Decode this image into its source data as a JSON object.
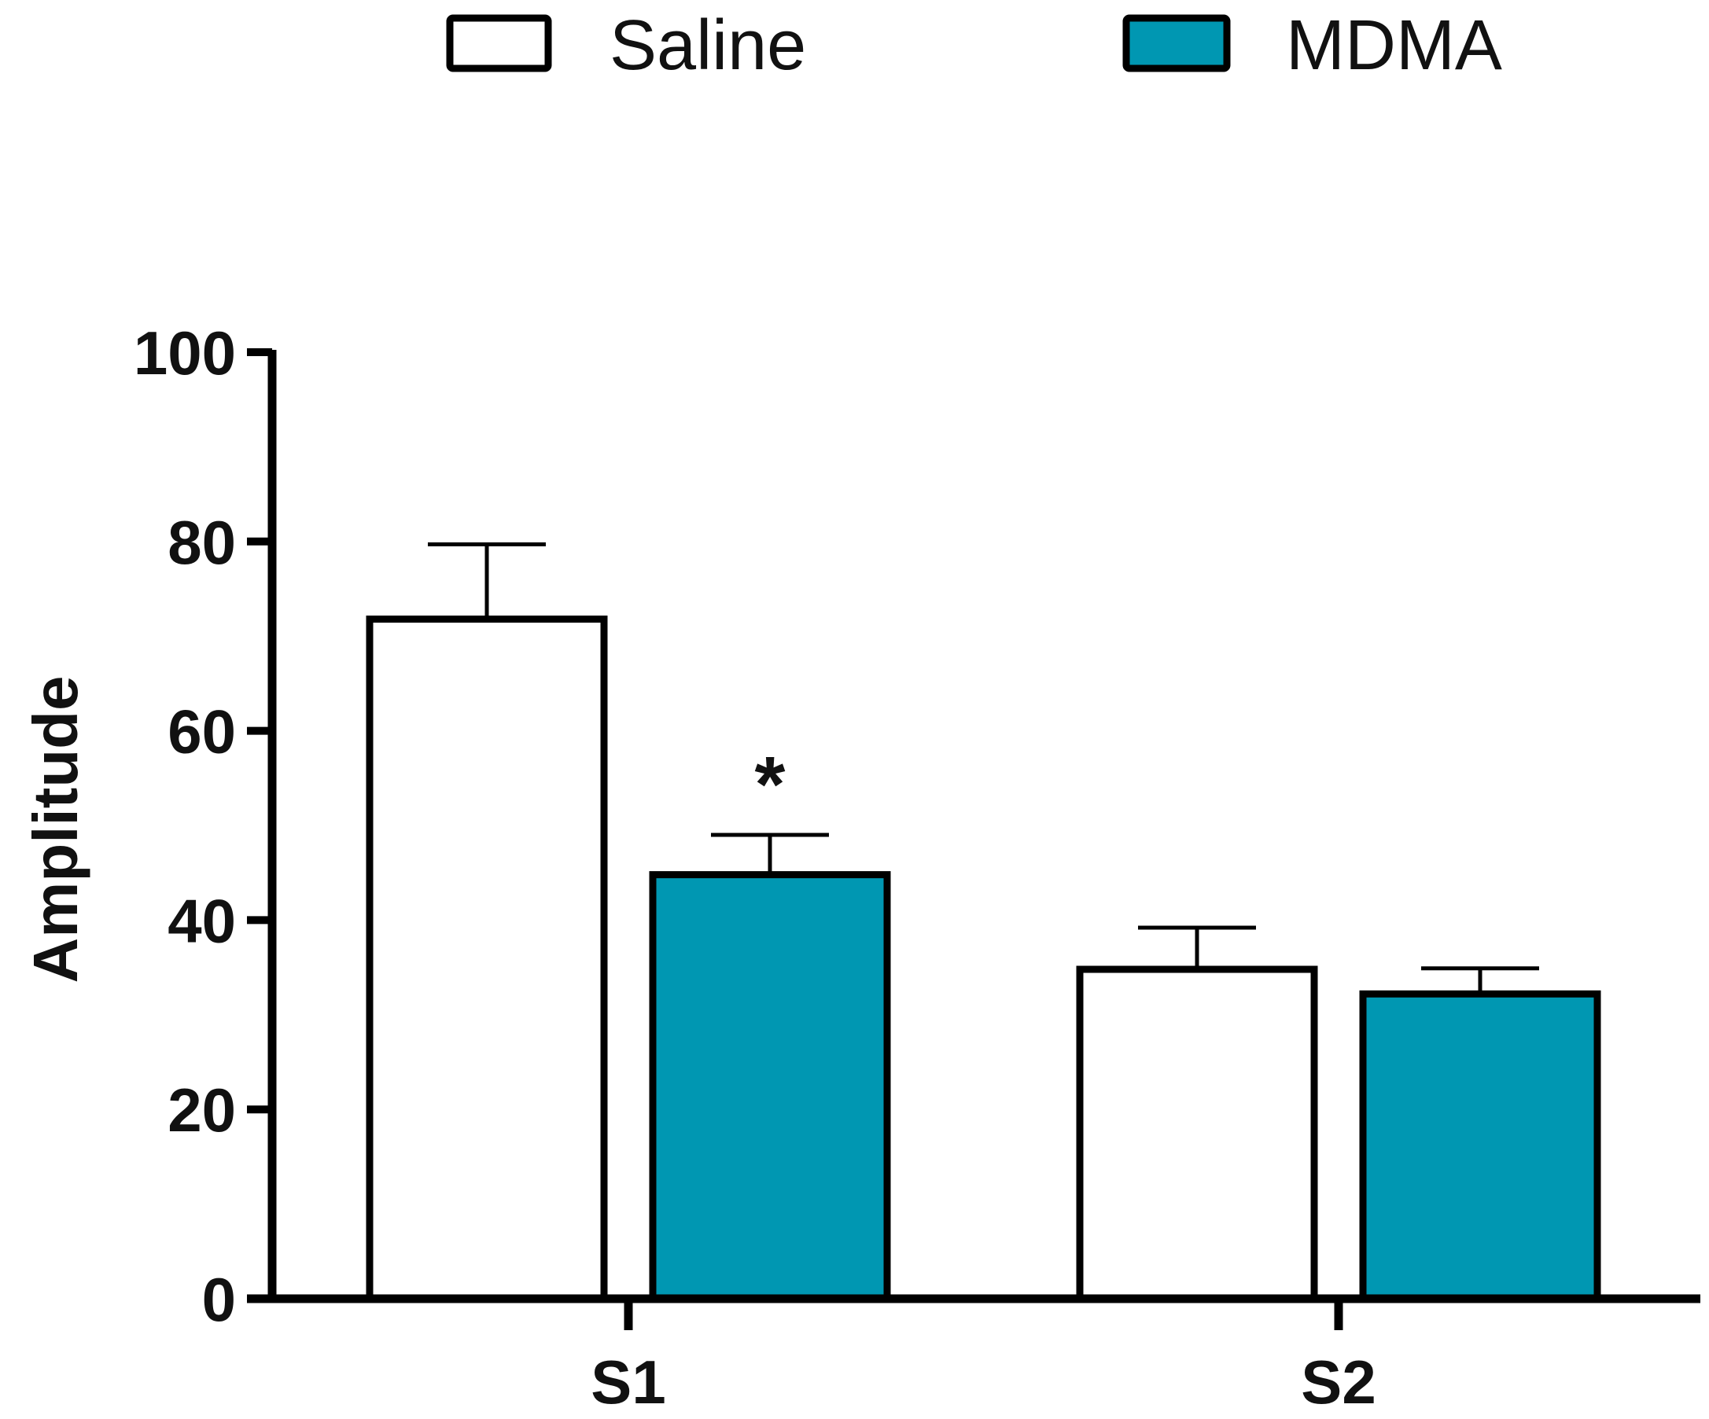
{
  "chart_data": {
    "type": "bar",
    "title": "",
    "xlabel": "",
    "ylabel": "Amplitude",
    "ylim": [
      0,
      100
    ],
    "yticks": [
      0,
      20,
      40,
      60,
      80,
      100
    ],
    "categories": [
      "S1",
      "S2"
    ],
    "series": [
      {
        "name": "Saline",
        "color": "#ffffff",
        "values": [
          71.8,
          34.8
        ],
        "error": [
          7.9,
          4.4
        ]
      },
      {
        "name": "MDMA",
        "color": "#0097b2",
        "values": [
          44.8,
          32.2
        ],
        "error": [
          4.2,
          2.7
        ]
      }
    ],
    "legend_position": "top",
    "grid": false,
    "annotations": [
      {
        "text": "*",
        "category": "S1",
        "series": "MDMA"
      }
    ]
  }
}
